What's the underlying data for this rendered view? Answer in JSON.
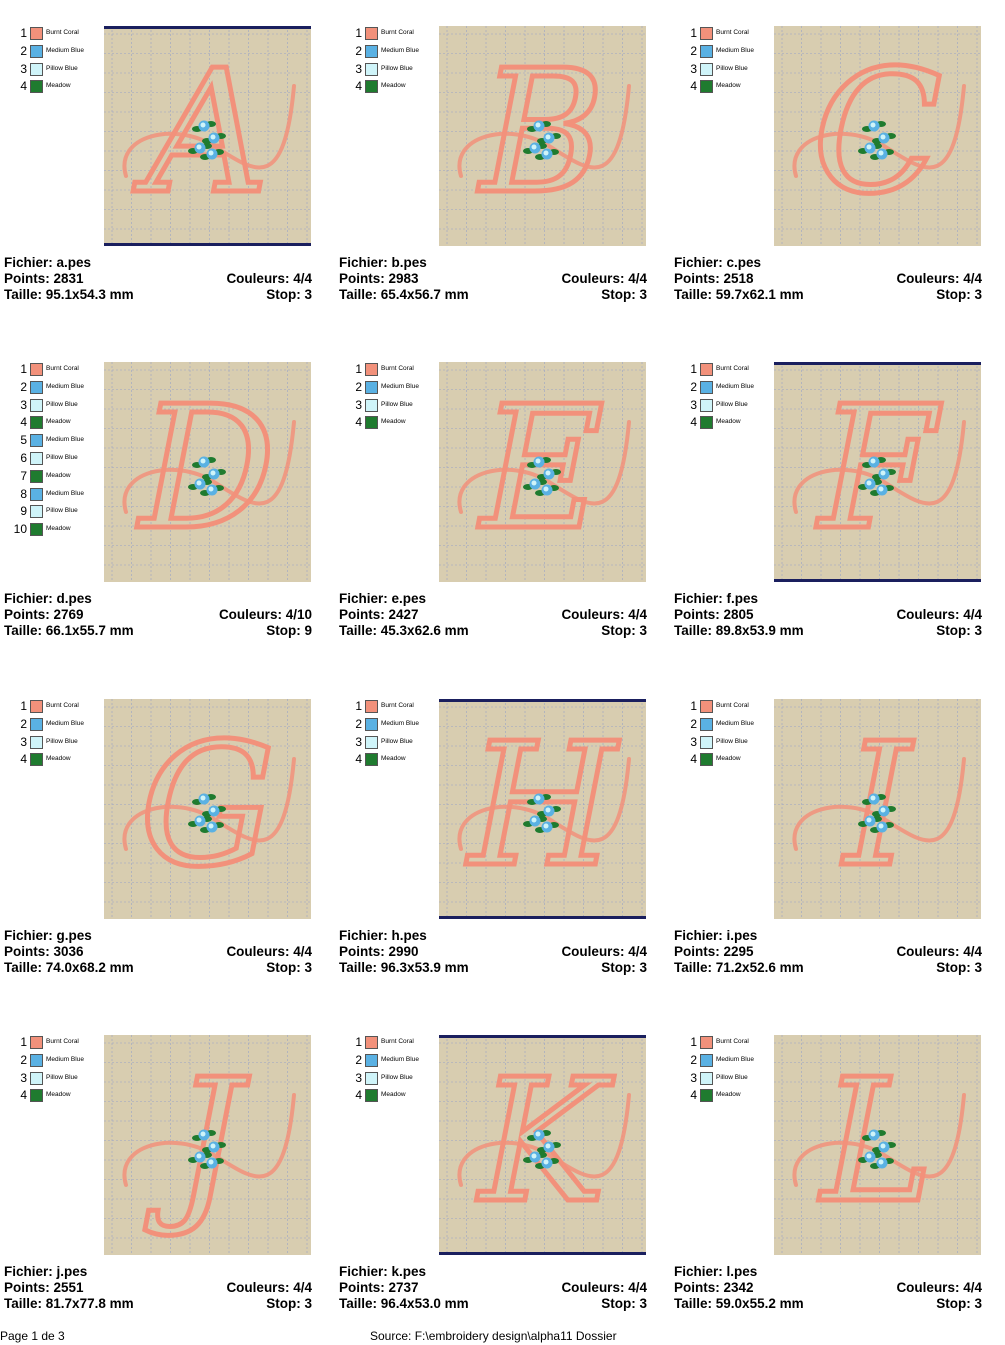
{
  "labels": {
    "file": "Fichier:",
    "points": "Points:",
    "colors": "Couleurs:",
    "size": "Taille:",
    "stop": "Stop:"
  },
  "palette": {
    "Burnt Coral": "#f2917b",
    "Medium Blue": "#5ab1e3",
    "Pillow Blue": "#cff4f9",
    "Meadow": "#1f7b2f"
  },
  "designs": [
    {
      "letter": "A",
      "file": "a.pes",
      "points": "2831",
      "colors": "4/4",
      "size": "95.1x54.3 mm",
      "stop": "3",
      "bordered": true,
      "legend": [
        {
          "n": "1",
          "name": "Burnt Coral"
        },
        {
          "n": "2",
          "name": "Medium Blue"
        },
        {
          "n": "3",
          "name": "Pillow Blue"
        },
        {
          "n": "4",
          "name": "Meadow"
        }
      ]
    },
    {
      "letter": "B",
      "file": "b.pes",
      "points": "2983",
      "colors": "4/4",
      "size": "65.4x56.7 mm",
      "stop": "3",
      "bordered": false,
      "legend": [
        {
          "n": "1",
          "name": "Burnt Coral"
        },
        {
          "n": "2",
          "name": "Medium Blue"
        },
        {
          "n": "3",
          "name": "Pillow Blue"
        },
        {
          "n": "4",
          "name": "Meadow"
        }
      ]
    },
    {
      "letter": "C",
      "file": "c.pes",
      "points": "2518",
      "colors": "4/4",
      "size": "59.7x62.1 mm",
      "stop": "3",
      "bordered": false,
      "legend": [
        {
          "n": "1",
          "name": "Burnt Coral"
        },
        {
          "n": "2",
          "name": "Medium Blue"
        },
        {
          "n": "3",
          "name": "Pillow Blue"
        },
        {
          "n": "4",
          "name": "Meadow"
        }
      ]
    },
    {
      "letter": "D",
      "file": "d.pes",
      "points": "2769",
      "colors": "4/10",
      "size": "66.1x55.7 mm",
      "stop": "9",
      "bordered": false,
      "legend": [
        {
          "n": "1",
          "name": "Burnt Coral"
        },
        {
          "n": "2",
          "name": "Medium Blue"
        },
        {
          "n": "3",
          "name": "Pillow Blue"
        },
        {
          "n": "4",
          "name": "Meadow"
        },
        {
          "n": "5",
          "name": "Medium Blue"
        },
        {
          "n": "6",
          "name": "Pillow Blue"
        },
        {
          "n": "7",
          "name": "Meadow"
        },
        {
          "n": "8",
          "name": "Medium Blue"
        },
        {
          "n": "9",
          "name": "Pillow Blue"
        },
        {
          "n": "10",
          "name": "Meadow"
        }
      ]
    },
    {
      "letter": "E",
      "file": "e.pes",
      "points": "2427",
      "colors": "4/4",
      "size": "45.3x62.6 mm",
      "stop": "3",
      "bordered": false,
      "legend": [
        {
          "n": "1",
          "name": "Burnt Coral"
        },
        {
          "n": "2",
          "name": "Medium Blue"
        },
        {
          "n": "3",
          "name": "Pillow Blue"
        },
        {
          "n": "4",
          "name": "Meadow"
        }
      ]
    },
    {
      "letter": "F",
      "file": "f.pes",
      "points": "2805",
      "colors": "4/4",
      "size": "89.8x53.9 mm",
      "stop": "3",
      "bordered": true,
      "legend": [
        {
          "n": "1",
          "name": "Burnt Coral"
        },
        {
          "n": "2",
          "name": "Medium Blue"
        },
        {
          "n": "3",
          "name": "Pillow Blue"
        },
        {
          "n": "4",
          "name": "Meadow"
        }
      ]
    },
    {
      "letter": "G",
      "file": "g.pes",
      "points": "3036",
      "colors": "4/4",
      "size": "74.0x68.2 mm",
      "stop": "3",
      "bordered": false,
      "legend": [
        {
          "n": "1",
          "name": "Burnt Coral"
        },
        {
          "n": "2",
          "name": "Medium Blue"
        },
        {
          "n": "3",
          "name": "Pillow Blue"
        },
        {
          "n": "4",
          "name": "Meadow"
        }
      ]
    },
    {
      "letter": "H",
      "file": "h.pes",
      "points": "2990",
      "colors": "4/4",
      "size": "96.3x53.9 mm",
      "stop": "3",
      "bordered": true,
      "legend": [
        {
          "n": "1",
          "name": "Burnt Coral"
        },
        {
          "n": "2",
          "name": "Medium Blue"
        },
        {
          "n": "3",
          "name": "Pillow Blue"
        },
        {
          "n": "4",
          "name": "Meadow"
        }
      ]
    },
    {
      "letter": "I",
      "file": "i.pes",
      "points": "2295",
      "colors": "4/4",
      "size": "71.2x52.6 mm",
      "stop": "3",
      "bordered": false,
      "legend": [
        {
          "n": "1",
          "name": "Burnt Coral"
        },
        {
          "n": "2",
          "name": "Medium Blue"
        },
        {
          "n": "3",
          "name": "Pillow Blue"
        },
        {
          "n": "4",
          "name": "Meadow"
        }
      ]
    },
    {
      "letter": "J",
      "file": "j.pes",
      "points": "2551",
      "colors": "4/4",
      "size": "81.7x77.8 mm",
      "stop": "3",
      "bordered": false,
      "legend": [
        {
          "n": "1",
          "name": "Burnt Coral"
        },
        {
          "n": "2",
          "name": "Medium Blue"
        },
        {
          "n": "3",
          "name": "Pillow Blue"
        },
        {
          "n": "4",
          "name": "Meadow"
        }
      ]
    },
    {
      "letter": "K",
      "file": "k.pes",
      "points": "2737",
      "colors": "4/4",
      "size": "96.4x53.0 mm",
      "stop": "3",
      "bordered": true,
      "legend": [
        {
          "n": "1",
          "name": "Burnt Coral"
        },
        {
          "n": "2",
          "name": "Medium Blue"
        },
        {
          "n": "3",
          "name": "Pillow Blue"
        },
        {
          "n": "4",
          "name": "Meadow"
        }
      ]
    },
    {
      "letter": "L",
      "file": "l.pes",
      "points": "2342",
      "colors": "4/4",
      "size": "59.0x55.2 mm",
      "stop": "3",
      "bordered": false,
      "legend": [
        {
          "n": "1",
          "name": "Burnt Coral"
        },
        {
          "n": "2",
          "name": "Medium Blue"
        },
        {
          "n": "3",
          "name": "Pillow Blue"
        },
        {
          "n": "4",
          "name": "Meadow"
        }
      ]
    }
  ],
  "footer": {
    "page": "Page 1 de 3",
    "source": "Source: F:\\embroidery design\\alpha11 Dossier"
  }
}
